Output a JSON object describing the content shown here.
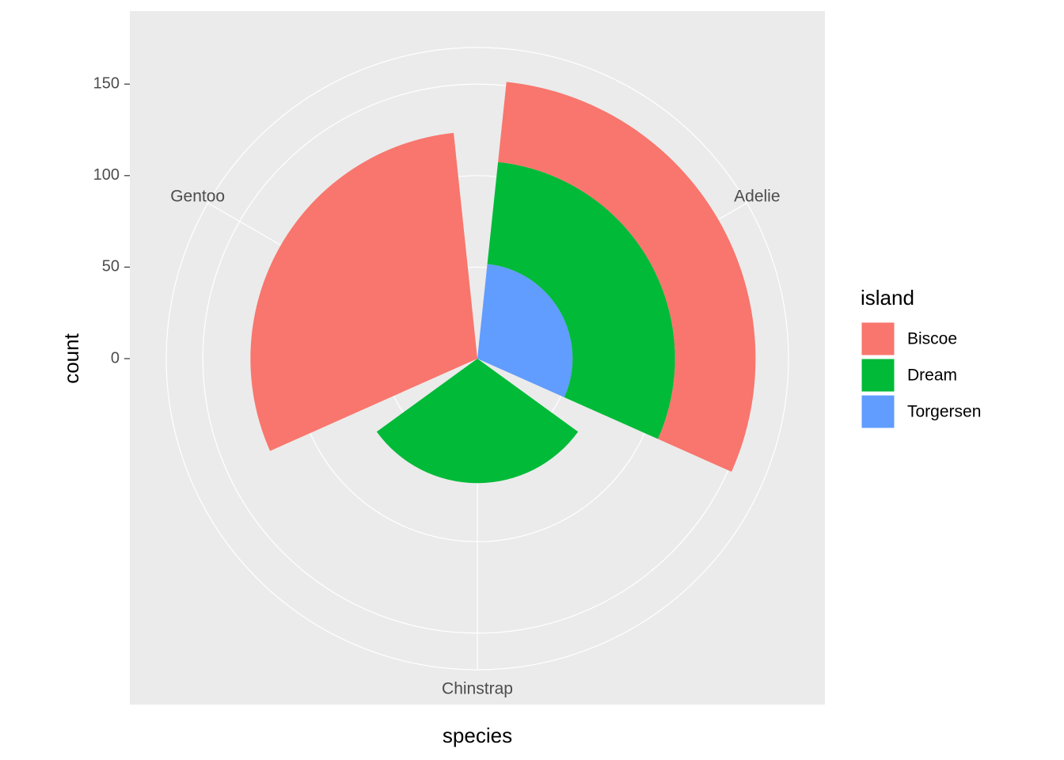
{
  "chart_data": {
    "type": "polar-bar",
    "x_label": "species",
    "y_label": "count",
    "categories": [
      "Adelie",
      "Chinstrap",
      "Gentoo"
    ],
    "series": [
      {
        "name": "Biscoe",
        "color": "#f8766d",
        "values": [
          44,
          0,
          124
        ]
      },
      {
        "name": "Dream",
        "color": "#00ba38",
        "values": [
          56,
          68,
          0
        ]
      },
      {
        "name": "Torgersen",
        "color": "#619cff",
        "values": [
          52,
          0,
          0
        ]
      }
    ],
    "legend_title": "island",
    "ylim": [
      0,
      170
    ],
    "yticks": [
      0,
      50,
      100,
      150
    ],
    "grid": true
  }
}
